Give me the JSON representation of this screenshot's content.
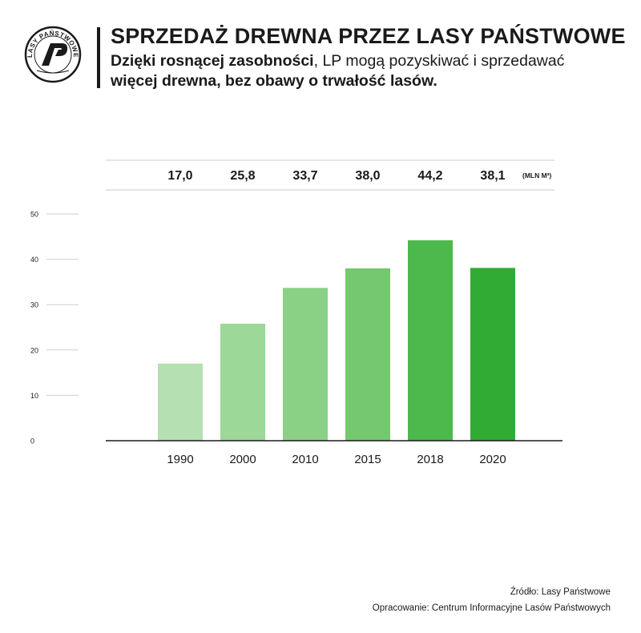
{
  "logo": {
    "text": "LASY PAŃSTWOWE"
  },
  "title": "SPRZEDAŻ DREWNA PRZEZ LASY PAŃSTWOWE",
  "subtitle": {
    "part1": "Dzięki rosnącej zasobności",
    "part2": ", LP mogą pozyskiwać i sprzedawać",
    "part3": "więcej drewna, bez obawy o trwałość lasów."
  },
  "chart_data": {
    "type": "bar",
    "categories": [
      "1990",
      "2000",
      "2010",
      "2015",
      "2018",
      "2020"
    ],
    "values": [
      17.0,
      25.8,
      33.7,
      38.0,
      44.2,
      38.1
    ],
    "value_labels": [
      "17,0",
      "25,8",
      "33,7",
      "38,0",
      "44,2",
      "38,1"
    ],
    "unit_label": "(MLN M³)",
    "yticks": [
      0,
      10,
      20,
      30,
      40,
      50
    ],
    "ylim": [
      0,
      50
    ],
    "grid": true,
    "colors": [
      "#b5e0b1",
      "#9cd897",
      "#8ad185",
      "#75c86f",
      "#4db84b",
      "#31ab34"
    ]
  },
  "source": {
    "line1": "Źródło: Lasy Państwowe",
    "line2": "Opracowanie: Centrum Informacyjne Lasów Państwowych"
  }
}
